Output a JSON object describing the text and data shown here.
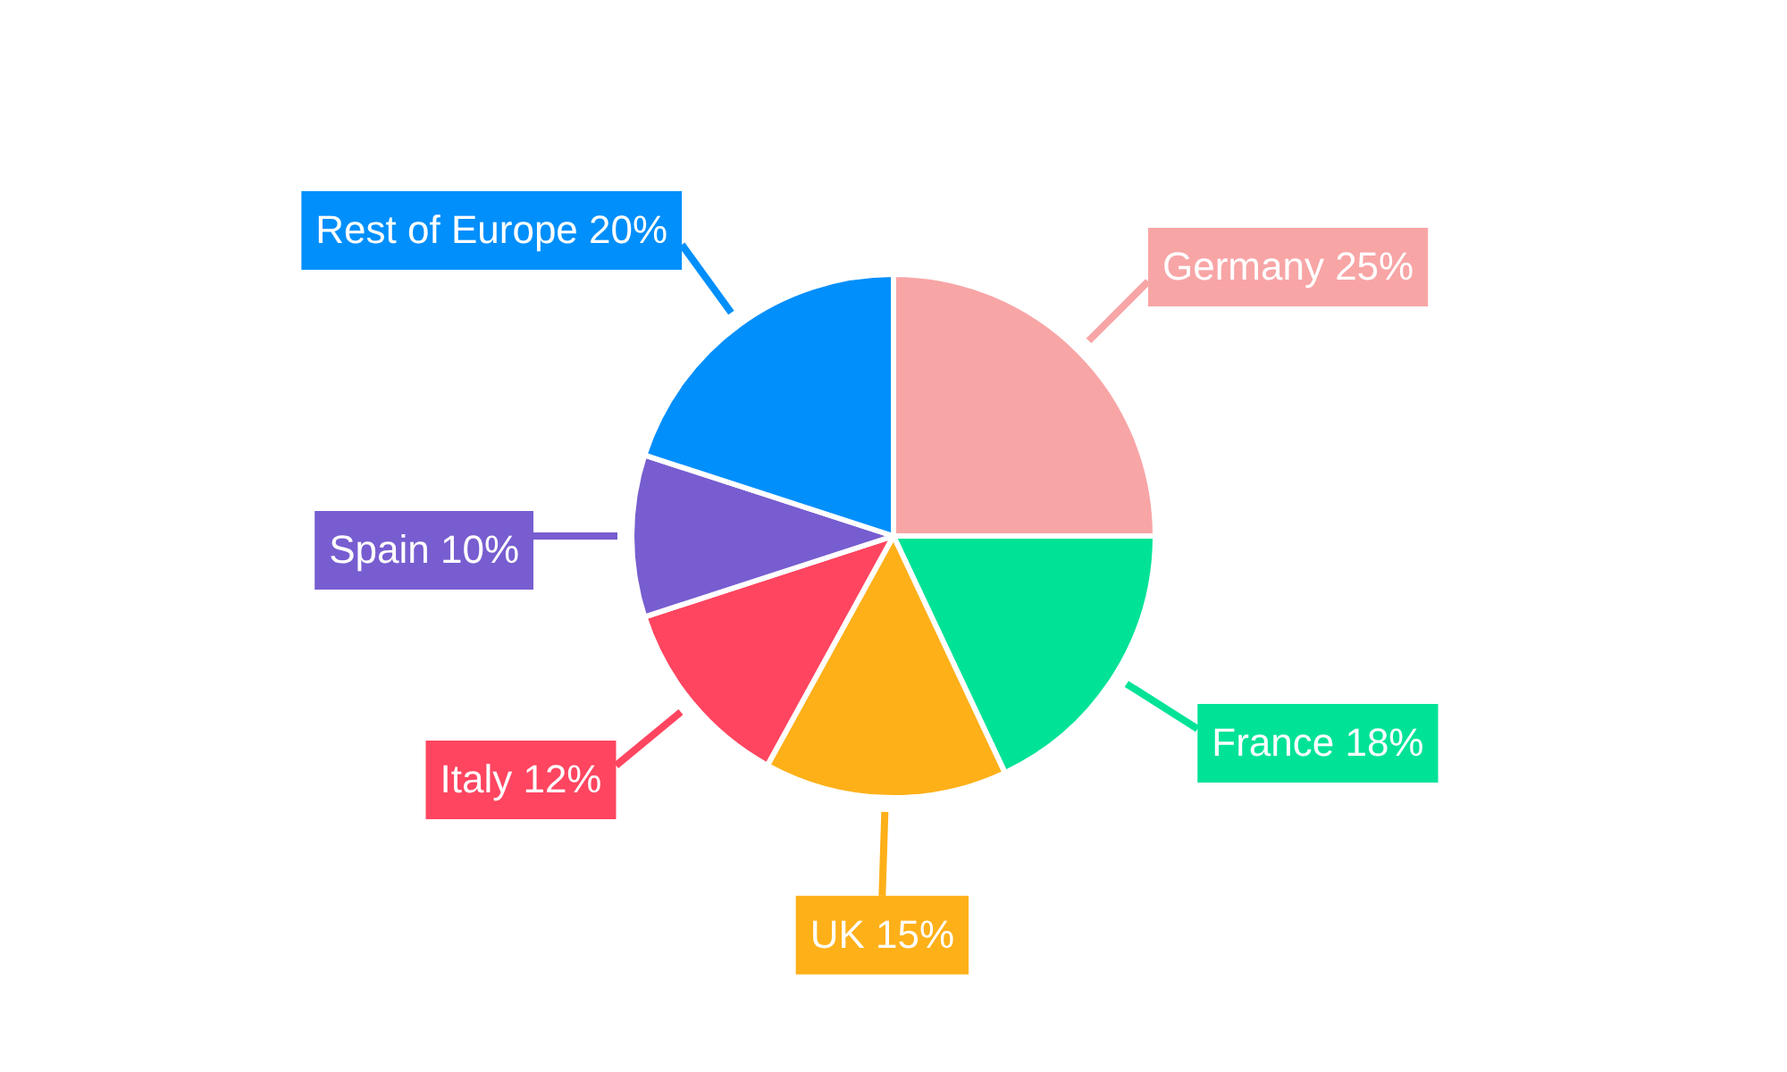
{
  "chart_data": {
    "type": "pie",
    "categories": [
      "Germany",
      "France",
      "UK",
      "Italy",
      "Spain",
      "Rest of Europe"
    ],
    "values": [
      25,
      18,
      15,
      12,
      10,
      20
    ],
    "value_labels": [
      "25%",
      "18%",
      "15%",
      "12%",
      "10%",
      "20%"
    ],
    "colors": [
      "#f8a5a6",
      "#00e396",
      "#feb019",
      "#ff4560",
      "#775dd0",
      "#008ffb"
    ],
    "legend": false
  }
}
